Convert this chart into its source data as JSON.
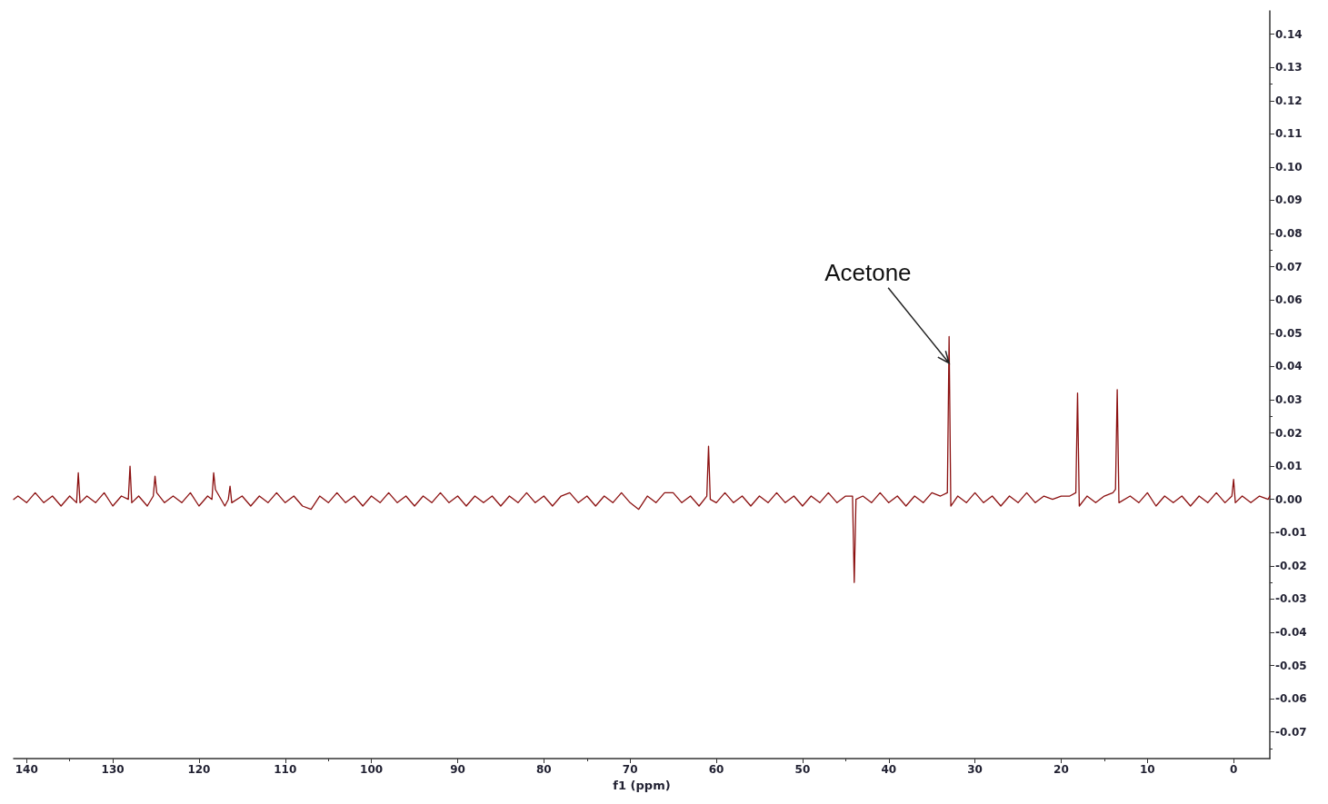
{
  "chart_data": {
    "type": "line",
    "xlabel": "f1 (ppm)",
    "xlim": [
      141.5,
      -4.2
    ],
    "xticks": [
      140,
      130,
      120,
      110,
      100,
      90,
      80,
      70,
      60,
      50,
      40,
      30,
      20,
      10,
      0
    ],
    "ylim": [
      -0.078,
      0.147
    ],
    "yticks": [
      -0.07,
      -0.06,
      -0.05,
      -0.04,
      -0.03,
      -0.02,
      -0.01,
      {
        "value": 0,
        "label": "0.00"
      },
      0.01,
      0.02,
      0.03,
      0.04,
      0.05,
      0.06,
      0.07,
      0.08,
      0.09,
      {
        "value": 0.1,
        "label": "0.10"
      },
      0.11,
      0.12,
      0.13,
      0.14
    ],
    "grid": false,
    "marker": "none",
    "line_style": "solid",
    "annotations": [
      {
        "text": "Acetone",
        "x": 33.0,
        "y": 0.041
      }
    ],
    "series": [
      {
        "color": "#8b1010",
        "x": [
          141.5,
          141,
          140,
          139,
          138,
          137,
          136,
          135,
          134.2,
          134.0,
          133.8,
          133,
          132,
          131,
          130,
          129,
          128.2,
          128.0,
          127.8,
          127,
          126,
          125.3,
          125.1,
          124.9,
          124,
          123,
          122,
          121,
          120,
          119,
          118.5,
          118.3,
          118.1,
          117,
          116.6,
          116.4,
          116.2,
          115,
          114,
          113,
          112,
          111,
          110,
          109,
          108,
          107,
          106,
          105,
          104,
          103,
          102,
          101,
          100,
          99,
          98,
          97,
          96,
          95,
          94,
          93,
          92,
          91,
          90,
          89,
          88,
          87,
          86,
          85,
          84,
          83,
          82,
          81,
          80,
          79,
          78,
          77,
          76,
          75,
          74,
          73,
          72,
          71,
          70,
          69,
          68,
          67,
          66,
          65,
          64,
          63,
          62,
          61.1,
          60.9,
          60.7,
          60,
          59,
          58,
          57,
          56,
          55,
          54,
          53,
          52,
          51,
          50,
          49,
          48,
          47,
          46,
          45,
          44.2,
          44.0,
          43.8,
          43,
          42,
          41,
          40,
          39,
          38,
          37,
          36,
          35,
          34,
          33.2,
          33.0,
          32.8,
          32,
          31,
          30,
          29,
          28,
          27,
          26,
          25,
          24,
          23,
          22,
          21,
          20,
          19,
          18.3,
          18.1,
          17.9,
          17,
          16,
          15,
          14,
          13.7,
          13.5,
          13.3,
          12,
          11,
          10,
          9,
          8,
          7,
          6,
          5,
          4,
          3,
          2,
          1,
          0.2,
          0.0,
          -0.2,
          -1,
          -2,
          -3,
          -4,
          -4.2
        ],
        "values": [
          0.0,
          0.001,
          -0.001,
          0.002,
          -0.001,
          0.001,
          -0.002,
          0.001,
          -0.001,
          0.008,
          -0.001,
          0.001,
          -0.001,
          0.002,
          -0.002,
          0.001,
          0.0,
          0.01,
          -0.001,
          0.001,
          -0.002,
          0.001,
          0.007,
          0.002,
          -0.001,
          0.001,
          -0.001,
          0.002,
          -0.002,
          0.001,
          0.0,
          0.008,
          0.003,
          -0.002,
          0.0,
          0.004,
          -0.001,
          0.001,
          -0.002,
          0.001,
          -0.001,
          0.002,
          -0.001,
          0.001,
          -0.002,
          -0.003,
          0.001,
          -0.001,
          0.002,
          -0.001,
          0.001,
          -0.002,
          0.001,
          -0.001,
          0.002,
          -0.001,
          0.001,
          -0.002,
          0.001,
          -0.001,
          0.002,
          -0.001,
          0.001,
          -0.002,
          0.001,
          -0.001,
          0.001,
          -0.002,
          0.001,
          -0.001,
          0.002,
          -0.001,
          0.001,
          -0.002,
          0.001,
          0.002,
          -0.001,
          0.001,
          -0.002,
          0.001,
          -0.001,
          0.002,
          -0.001,
          -0.003,
          0.001,
          -0.001,
          0.002,
          0.002,
          -0.001,
          0.001,
          -0.002,
          0.001,
          0.016,
          0.0,
          -0.001,
          0.002,
          -0.001,
          0.001,
          -0.002,
          0.001,
          -0.001,
          0.002,
          -0.001,
          0.001,
          -0.002,
          0.001,
          -0.001,
          0.002,
          -0.001,
          0.001,
          0.001,
          -0.025,
          0.0,
          0.001,
          -0.001,
          0.002,
          -0.001,
          0.001,
          -0.002,
          0.001,
          -0.001,
          0.002,
          0.001,
          0.002,
          0.049,
          -0.002,
          0.001,
          -0.001,
          0.002,
          -0.001,
          0.001,
          -0.002,
          0.001,
          -0.001,
          0.002,
          -0.001,
          0.001,
          0.0,
          0.001,
          0.001,
          0.002,
          0.032,
          -0.002,
          0.001,
          -0.001,
          0.001,
          0.002,
          0.003,
          0.033,
          -0.001,
          0.001,
          -0.001,
          0.002,
          -0.002,
          0.001,
          -0.001,
          0.001,
          -0.002,
          0.001,
          -0.001,
          0.002,
          -0.001,
          0.001,
          0.006,
          -0.001,
          0.001,
          -0.001,
          0.001,
          0.0,
          0.001
        ]
      }
    ]
  }
}
